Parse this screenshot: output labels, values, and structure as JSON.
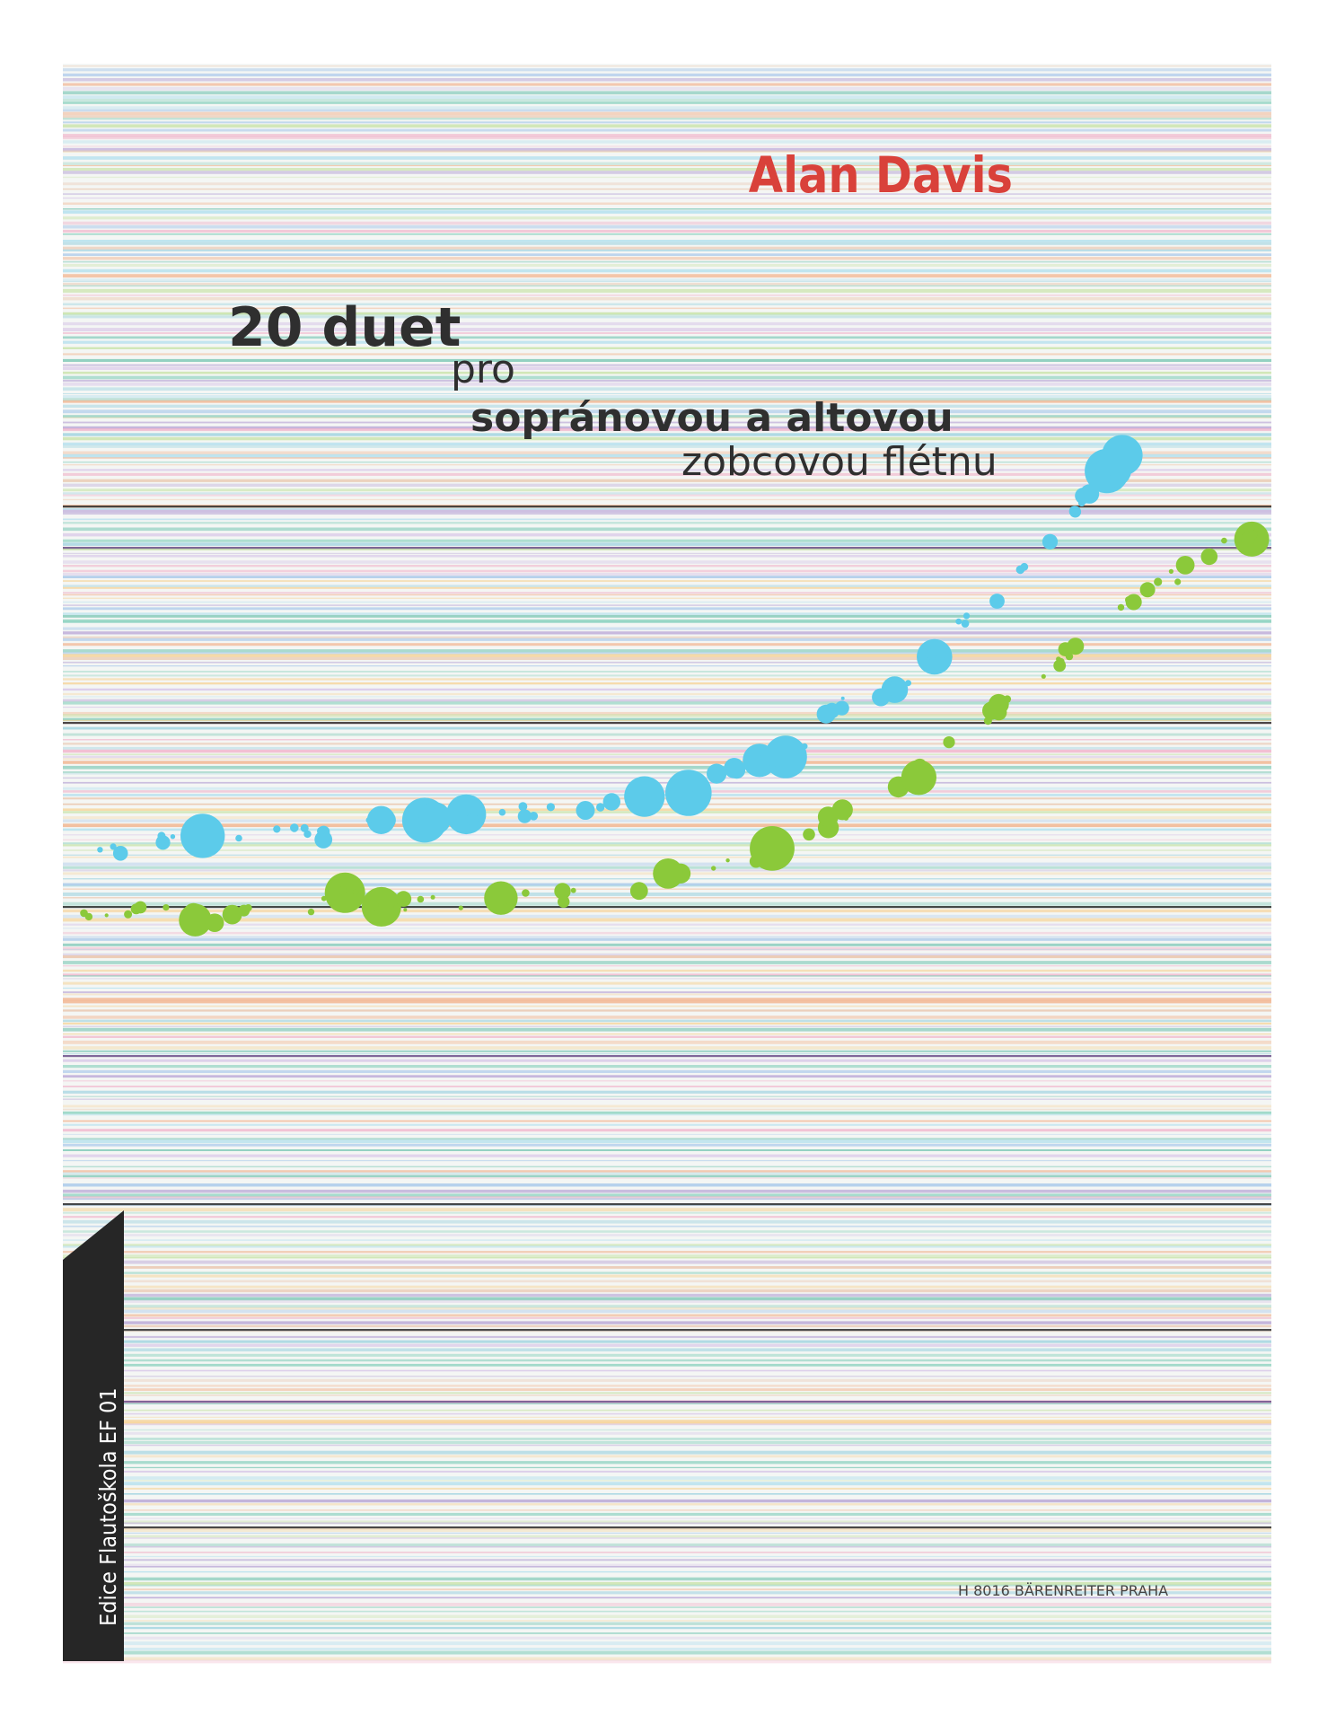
{
  "author": "Alan Davis",
  "title": "20 duet",
  "subtitle": {
    "line1": "pro",
    "line2": "sopránovou a altovou",
    "line3": "zobcovou flétnu"
  },
  "series": "Edice Flautoškola EF 01",
  "publisher": "H 8016 BÄRENREITER PRAHA"
}
